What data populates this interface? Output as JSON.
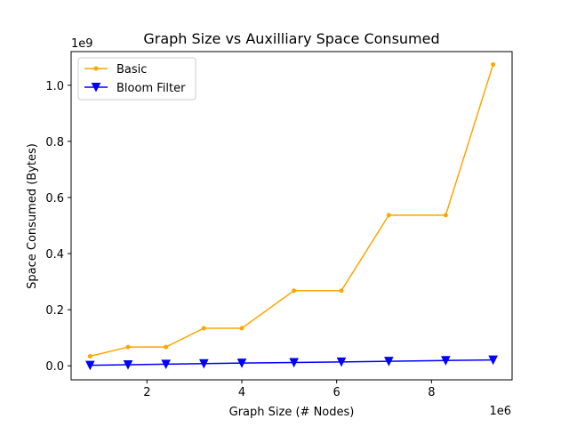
{
  "chart_data": {
    "type": "line",
    "title": "Graph Size vs Auxilliary Space Consumed",
    "xlabel": "Graph Size (# Nodes)",
    "ylabel": "Space Consumed (Bytes)",
    "x_offset_label": "1e6",
    "y_offset_label": "1e9",
    "xlim": [
      0.4,
      9.7
    ],
    "ylim": [
      -0.05,
      1.12
    ],
    "x_ticks": [
      2,
      4,
      6,
      8
    ],
    "y_ticks": [
      0.0,
      0.2,
      0.4,
      0.6,
      0.8,
      1.0
    ],
    "x_tick_labels": [
      "2",
      "4",
      "6",
      "8"
    ],
    "y_tick_labels": [
      "0.0",
      "0.2",
      "0.4",
      "0.6",
      "0.8",
      "1.0"
    ],
    "grid": false,
    "legend_position": "top-left",
    "x": [
      0.8,
      1.6,
      2.4,
      3.2,
      4.0,
      5.1,
      6.1,
      7.1,
      8.3,
      9.3
    ],
    "series": [
      {
        "name": "Basic",
        "color": "#FFA500",
        "marker": "dot",
        "values": [
          0.034,
          0.067,
          0.067,
          0.134,
          0.134,
          0.268,
          0.268,
          0.537,
          0.537,
          1.074
        ]
      },
      {
        "name": "Bloom Filter",
        "color": "#0000FF",
        "marker": "triangle-down",
        "values": [
          0.002,
          0.004,
          0.006,
          0.008,
          0.01,
          0.012,
          0.014,
          0.016,
          0.019,
          0.021
        ]
      }
    ]
  }
}
